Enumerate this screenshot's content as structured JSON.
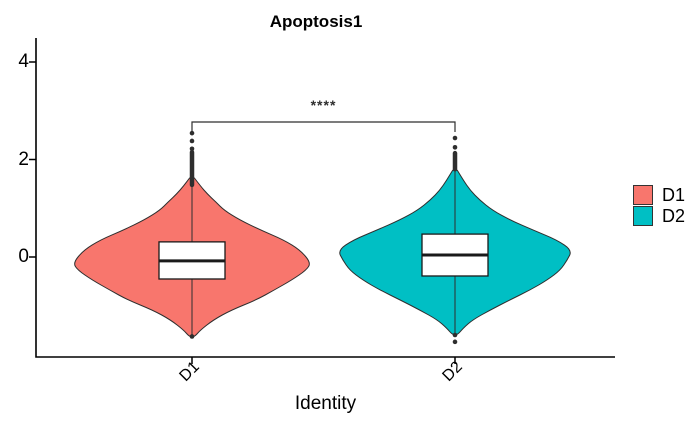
{
  "title": "Apoptosis1",
  "significance": {
    "label": "****",
    "y_value": 2.77,
    "from": "D1",
    "to": "D2"
  },
  "x_axis": {
    "title": "Identity",
    "categories": [
      "D1",
      "D2"
    ]
  },
  "y_axis": {
    "ticks": [
      {
        "label": "4",
        "value": 4
      },
      {
        "label": "2",
        "value": 2
      },
      {
        "label": "0",
        "value": 0
      }
    ]
  },
  "legend": {
    "items": [
      {
        "label": "D1",
        "color": "#F8766D"
      },
      {
        "label": "D2",
        "color": "#00BFC4"
      }
    ]
  },
  "chart_data": {
    "type": "violin",
    "title": "Apoptosis1",
    "xlabel": "Identity",
    "ylabel": "",
    "ylim": [
      -2.1,
      4.5
    ],
    "grid": false,
    "legend_position": "right",
    "categories": [
      "D1",
      "D2"
    ],
    "significance_annotation": {
      "label": "****",
      "y": 2.77,
      "between": [
        "D1",
        "D2"
      ]
    },
    "series": [
      {
        "name": "D1",
        "color": "#F8766D",
        "box": {
          "q1": -0.45,
          "median": -0.08,
          "q3": 0.31
        },
        "violin_range": [
          -1.64,
          1.62
        ],
        "outliers_top": [
          2.54,
          2.38,
          2.22
        ],
        "outlier_stack_top": [
          1.48,
          2.15
        ],
        "outliers_bottom": [
          -1.63
        ],
        "profile": [
          [
            1.62,
            0.02
          ],
          [
            1.46,
            0.07
          ],
          [
            1.29,
            0.13
          ],
          [
            1.13,
            0.2
          ],
          [
            0.96,
            0.27
          ],
          [
            0.76,
            0.4
          ],
          [
            0.55,
            0.58
          ],
          [
            0.35,
            0.77
          ],
          [
            0.14,
            0.91
          ],
          [
            -0.12,
            1.0
          ],
          [
            -0.27,
            0.96
          ],
          [
            -0.47,
            0.84
          ],
          [
            -0.68,
            0.69
          ],
          [
            -0.88,
            0.54
          ],
          [
            -1.09,
            0.33
          ],
          [
            -1.29,
            0.18
          ],
          [
            -1.5,
            0.07
          ],
          [
            -1.64,
            0.02
          ]
        ]
      },
      {
        "name": "D2",
        "color": "#00BFC4",
        "box": {
          "q1": -0.39,
          "median": 0.04,
          "q3": 0.47
        },
        "violin_range": [
          -1.6,
          1.78
        ],
        "outliers_top": [
          2.44,
          2.25
        ],
        "outlier_stack_top": [
          1.8,
          2.13
        ],
        "outliers_bottom": [
          -1.6,
          -1.74
        ],
        "profile": [
          [
            1.78,
            0.02
          ],
          [
            1.58,
            0.07
          ],
          [
            1.37,
            0.13
          ],
          [
            1.17,
            0.21
          ],
          [
            0.96,
            0.32
          ],
          [
            0.76,
            0.47
          ],
          [
            0.55,
            0.67
          ],
          [
            0.35,
            0.87
          ],
          [
            0.14,
            1.0
          ],
          [
            -0.06,
            0.96
          ],
          [
            -0.27,
            0.9
          ],
          [
            -0.47,
            0.79
          ],
          [
            -0.68,
            0.64
          ],
          [
            -0.88,
            0.47
          ],
          [
            -1.09,
            0.3
          ],
          [
            -1.29,
            0.15
          ],
          [
            -1.46,
            0.07
          ],
          [
            -1.6,
            0.02
          ]
        ]
      }
    ]
  }
}
